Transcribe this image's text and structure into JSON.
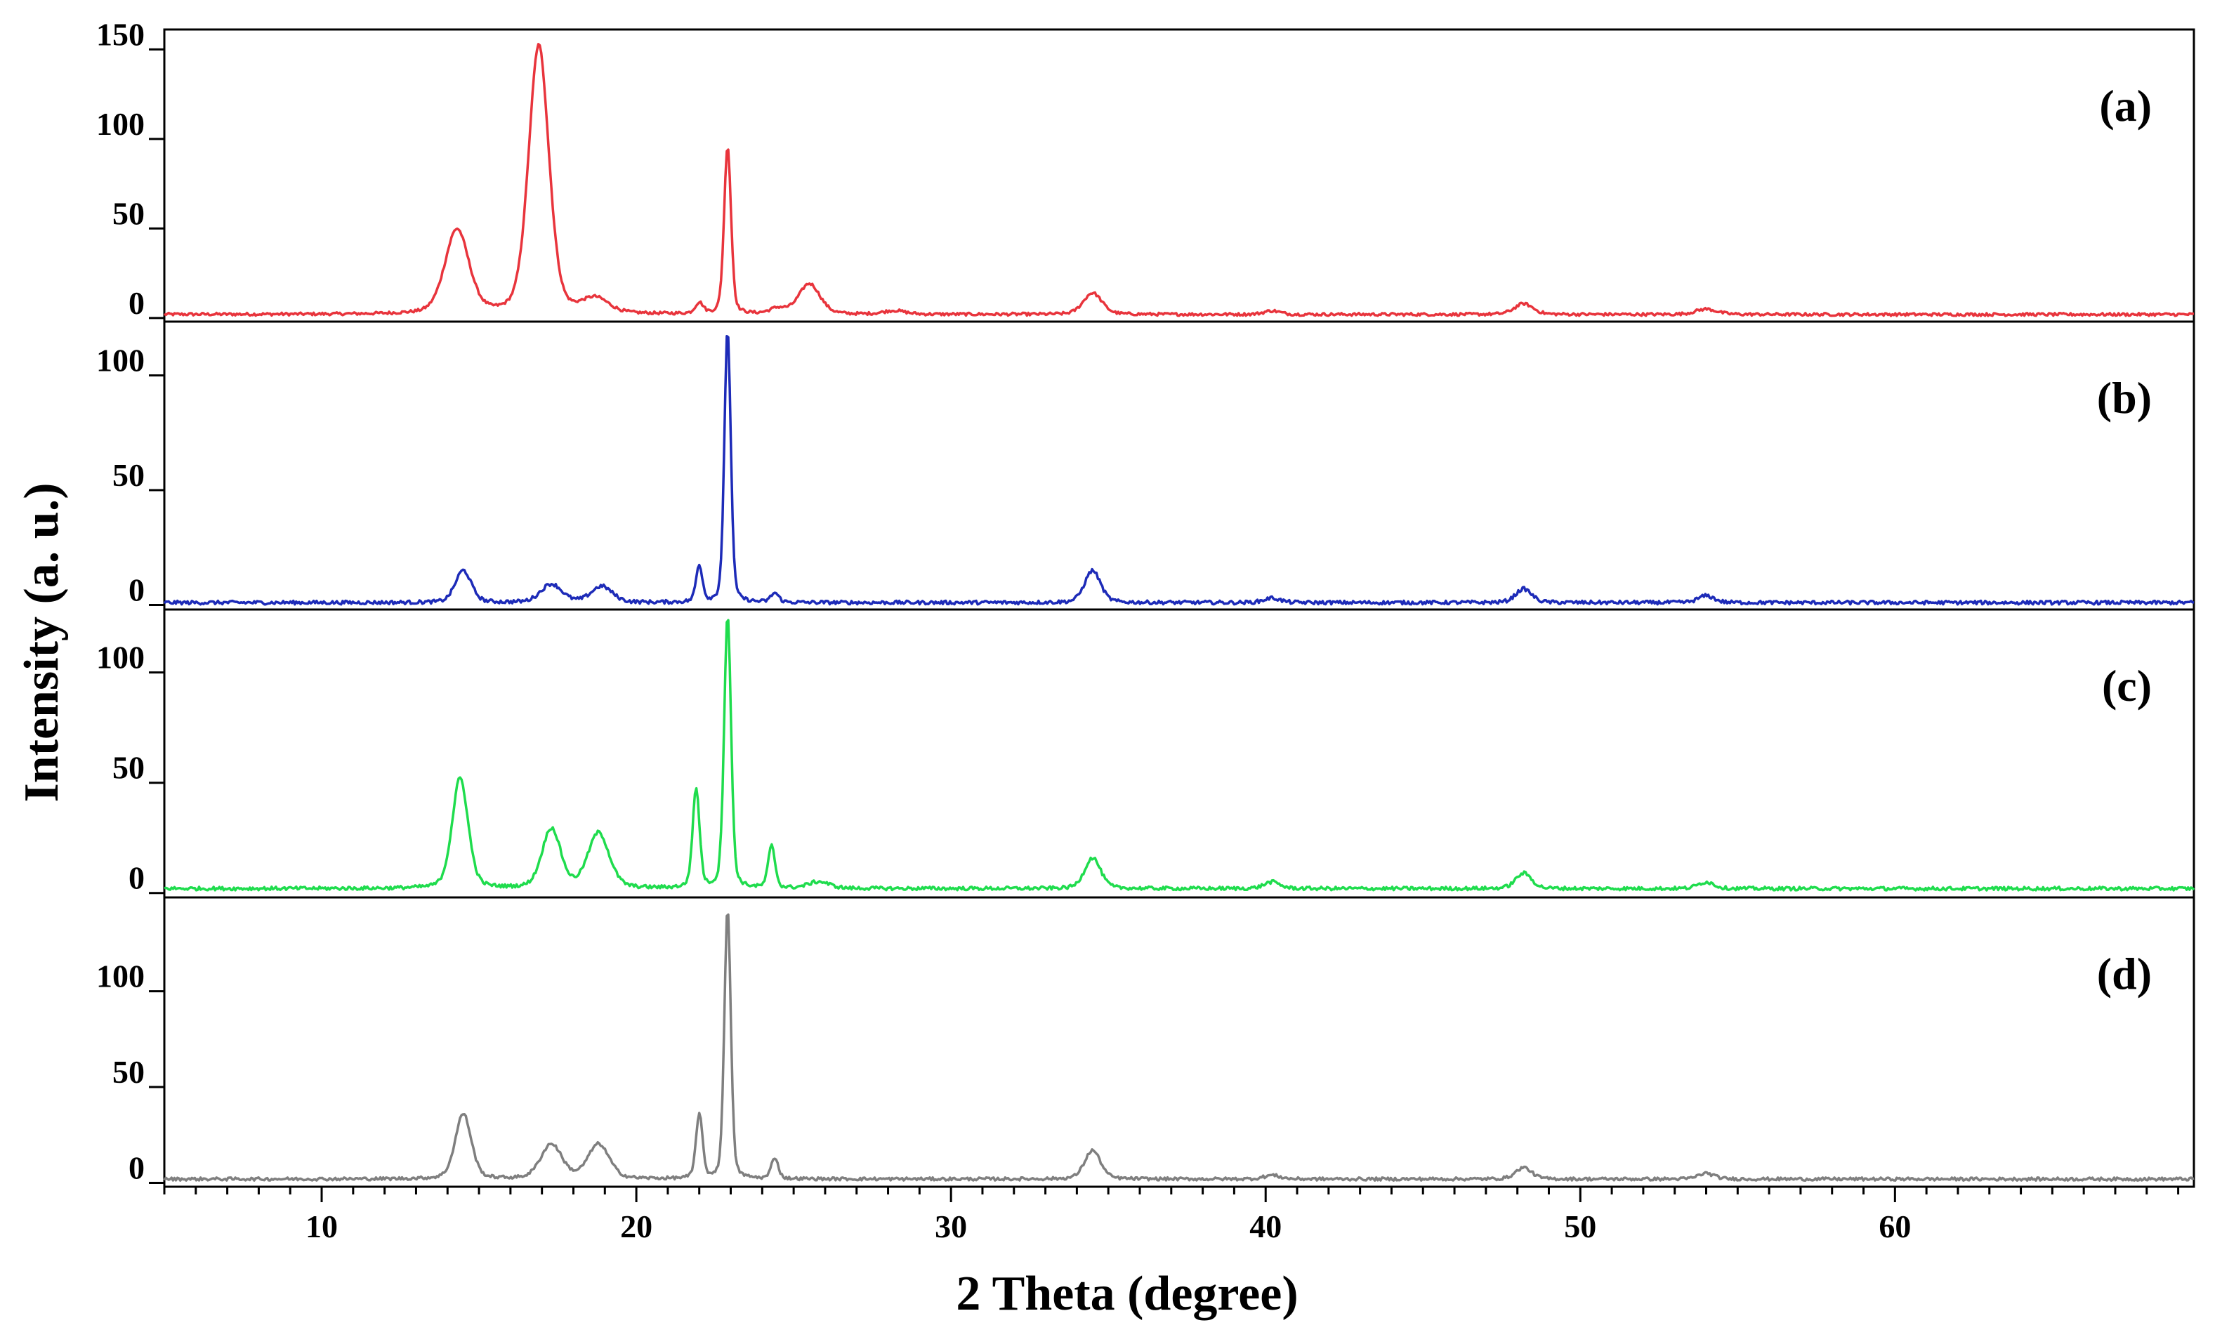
{
  "chart_data": {
    "type": "line",
    "xlabel": "2 Theta (degree)",
    "ylabel": "Intensity (a. u.)",
    "xlim": [
      5,
      69.5
    ],
    "x_ticks": [
      10,
      20,
      30,
      40,
      50,
      60
    ],
    "grid": false,
    "panels": [
      {
        "label": "(a)",
        "color": "#e8343c",
        "ylim": [
          -2,
          158
        ],
        "y_ticks": [
          0,
          50,
          100,
          150
        ],
        "baseline": 2,
        "peaks": [
          {
            "x": 14.3,
            "y": 47,
            "w": 0.45
          },
          {
            "x": 16.9,
            "y": 150,
            "w": 0.38
          },
          {
            "x": 18.7,
            "y": 8,
            "w": 0.5
          },
          {
            "x": 22.0,
            "y": 6,
            "w": 0.15
          },
          {
            "x": 22.9,
            "y": 94,
            "w": 0.13
          },
          {
            "x": 24.5,
            "y": 3,
            "w": 0.3
          },
          {
            "x": 25.5,
            "y": 17,
            "w": 0.4
          },
          {
            "x": 28.2,
            "y": 2,
            "w": 0.4
          },
          {
            "x": 34.5,
            "y": 12,
            "w": 0.35
          },
          {
            "x": 40.2,
            "y": 2,
            "w": 0.3
          },
          {
            "x": 48.2,
            "y": 6,
            "w": 0.35
          },
          {
            "x": 54.0,
            "y": 3,
            "w": 0.4
          }
        ]
      },
      {
        "label": "(b)",
        "color": "#1d2bb8",
        "ylim": [
          -2,
          121
        ],
        "y_ticks": [
          0,
          50,
          100
        ],
        "baseline": 1,
        "peaks": [
          {
            "x": 14.5,
            "y": 14,
            "w": 0.3
          },
          {
            "x": 17.3,
            "y": 8,
            "w": 0.4
          },
          {
            "x": 18.9,
            "y": 7,
            "w": 0.4
          },
          {
            "x": 22.0,
            "y": 16,
            "w": 0.12
          },
          {
            "x": 22.9,
            "y": 119,
            "w": 0.12
          },
          {
            "x": 24.4,
            "y": 4,
            "w": 0.15
          },
          {
            "x": 34.5,
            "y": 14,
            "w": 0.3
          },
          {
            "x": 40.2,
            "y": 2,
            "w": 0.3
          },
          {
            "x": 48.2,
            "y": 6,
            "w": 0.3
          },
          {
            "x": 54.0,
            "y": 3,
            "w": 0.3
          }
        ]
      },
      {
        "label": "(c)",
        "color": "#1fdc4d",
        "ylim": [
          -2,
          126
        ],
        "y_ticks": [
          0,
          50,
          100
        ],
        "baseline": 2,
        "peaks": [
          {
            "x": 14.4,
            "y": 50,
            "w": 0.3
          },
          {
            "x": 17.3,
            "y": 27,
            "w": 0.35
          },
          {
            "x": 18.8,
            "y": 25,
            "w": 0.4
          },
          {
            "x": 21.9,
            "y": 45,
            "w": 0.13
          },
          {
            "x": 22.9,
            "y": 124,
            "w": 0.13
          },
          {
            "x": 24.3,
            "y": 19,
            "w": 0.13
          },
          {
            "x": 25.8,
            "y": 3,
            "w": 0.4
          },
          {
            "x": 34.5,
            "y": 14,
            "w": 0.3
          },
          {
            "x": 40.2,
            "y": 3,
            "w": 0.3
          },
          {
            "x": 48.2,
            "y": 7,
            "w": 0.3
          },
          {
            "x": 54.0,
            "y": 3,
            "w": 0.3
          }
        ]
      },
      {
        "label": "(d)",
        "color": "#7f7f7f",
        "ylim": [
          -2,
          146
        ],
        "y_ticks": [
          0,
          50,
          100
        ],
        "baseline": 2,
        "peaks": [
          {
            "x": 14.5,
            "y": 34,
            "w": 0.3
          },
          {
            "x": 17.3,
            "y": 18,
            "w": 0.4
          },
          {
            "x": 18.8,
            "y": 18,
            "w": 0.4
          },
          {
            "x": 22.0,
            "y": 34,
            "w": 0.12
          },
          {
            "x": 22.9,
            "y": 142,
            "w": 0.12
          },
          {
            "x": 24.4,
            "y": 11,
            "w": 0.13
          },
          {
            "x": 34.5,
            "y": 15,
            "w": 0.3
          },
          {
            "x": 40.2,
            "y": 2,
            "w": 0.3
          },
          {
            "x": 48.2,
            "y": 6,
            "w": 0.3
          },
          {
            "x": 54.0,
            "y": 3,
            "w": 0.3
          }
        ]
      }
    ]
  }
}
